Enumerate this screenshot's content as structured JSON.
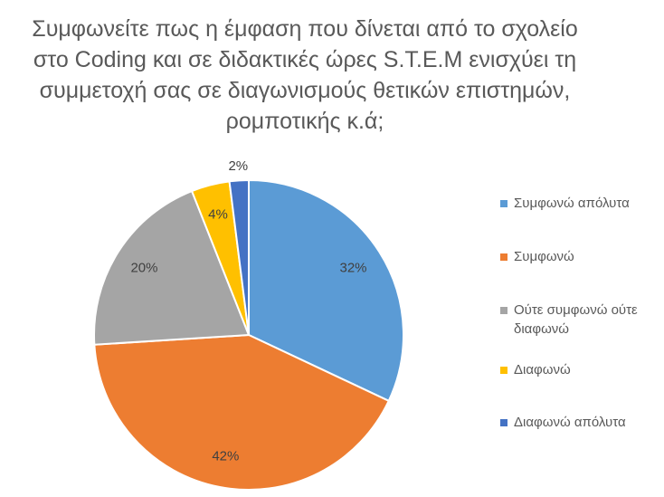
{
  "chart_data": {
    "type": "pie",
    "title": [
      "Συμφωνείτε πως η έμφαση που δίνεται από το σχολείο",
      "στο Coding και σε διδακτικές ώρες S.T.E.M ενισχύει τη",
      "συμμετοχή σας σε διαγωνισμούς θετικών επιστημών,",
      "ρομποτικής κ.ά;"
    ],
    "categories": [
      "Συμφωνώ απόλυτα",
      "Συμφωνώ",
      "Ούτε συμφωνώ ούτε διαφωνώ",
      "Διαφωνώ",
      "Διαφωνώ απόλυτα"
    ],
    "values": [
      32,
      42,
      20,
      4,
      2
    ],
    "value_labels": [
      "32%",
      "42%",
      "20%",
      "4%",
      "2%"
    ],
    "colors": [
      "#5b9bd5",
      "#ed7d31",
      "#a5a5a5",
      "#ffc000",
      "#4472c4"
    ],
    "legend": "right"
  }
}
